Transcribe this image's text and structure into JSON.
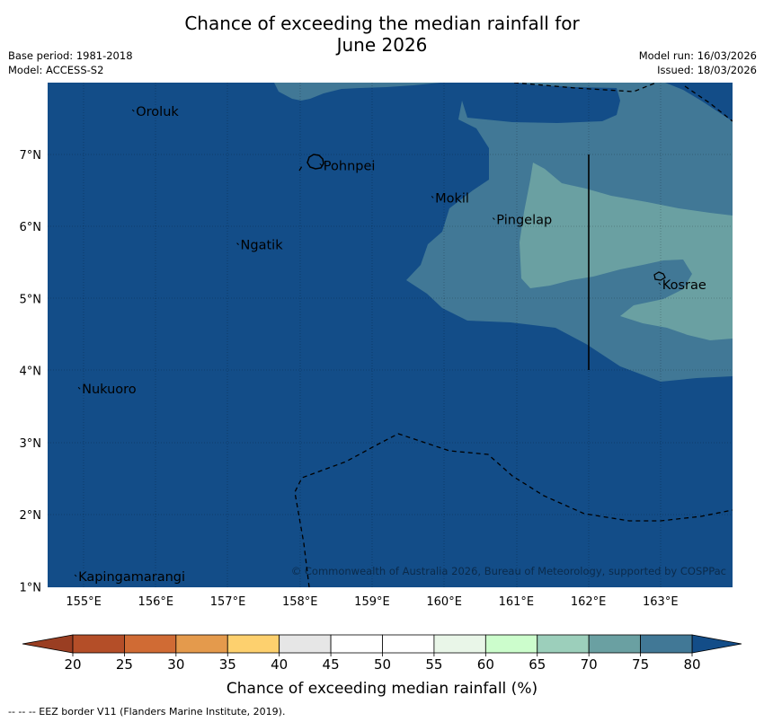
{
  "title": {
    "line1": "Chance of exceeding the median rainfall for",
    "line2": "June 2026"
  },
  "meta": {
    "base_period": "Base period: 1981-2018",
    "model": "Model: ACCESS-S2",
    "model_run": "Model run: 16/03/2026",
    "issued": "Issued: 18/03/2026"
  },
  "map": {
    "lon_ticks": [
      "155°E",
      "156°E",
      "157°E",
      "158°E",
      "159°E",
      "160°E",
      "161°E",
      "162°E",
      "163°E"
    ],
    "lat_ticks": [
      "1°N",
      "2°N",
      "3°N",
      "4°N",
      "5°N",
      "6°N",
      "7°N"
    ],
    "lon_range": [
      154.5,
      164.0
    ],
    "lat_range": [
      1.0,
      8.0
    ],
    "places": [
      {
        "name": "Oroluk",
        "lon": 155.7,
        "lat": 7.6
      },
      {
        "name": "Pohnpei",
        "lon": 158.3,
        "lat": 6.85
      },
      {
        "name": "Mokil",
        "lon": 159.85,
        "lat": 6.4
      },
      {
        "name": "Pingelap",
        "lon": 160.7,
        "lat": 6.1
      },
      {
        "name": "Ngatik",
        "lon": 157.15,
        "lat": 5.75
      },
      {
        "name": "Kosrae",
        "lon": 163.0,
        "lat": 5.2
      },
      {
        "name": "Nukuoro",
        "lon": 154.95,
        "lat": 3.75
      },
      {
        "name": "Kapingamarangi",
        "lon": 154.9,
        "lat": 1.15
      }
    ],
    "copyright": "© Commonwealth of Australia 2026, Bureau of Meteorology, supported by COSPPac",
    "fill_colors": {
      "level_75_80": "#134d88",
      "level_70_75": "#417896",
      "level_65_70": "#6aa0a2"
    }
  },
  "colorbar": {
    "ticks": [
      "20",
      "25",
      "30",
      "35",
      "40",
      "45",
      "50",
      "55",
      "60",
      "65",
      "70",
      "75",
      "80"
    ],
    "colors": [
      "#b44e28",
      "#d06b34",
      "#e49a4c",
      "#fdd06e",
      "#e6e6e6",
      "#ffffff",
      "#ffffff",
      "#e9f6e8",
      "#ccfdcc",
      "#9ccfbb",
      "#6aa0a2",
      "#417896"
    ],
    "low_extend_color": "#9a3e22",
    "high_extend_color": "#134d88",
    "label": "Chance of exceeding median rainfall (%)"
  },
  "footnote": "--  --  -- EEZ border V11 (Flanders Marine Institute, 2019)."
}
